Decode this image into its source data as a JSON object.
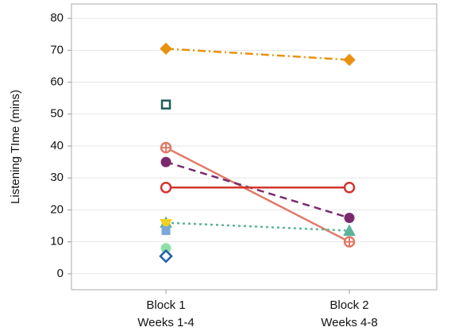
{
  "chart_data": {
    "type": "line",
    "ylabel": "Listening TIme (mins)",
    "categories": [
      [
        "Block 1",
        "Weeks 1-4"
      ],
      [
        "Block 2",
        "Weeks 4-8"
      ]
    ],
    "ylim": [
      -5,
      84.5
    ],
    "yticks": [
      0,
      10,
      20,
      30,
      40,
      50,
      60,
      70,
      80
    ],
    "grid": true,
    "series": [
      {
        "color": "#e8920c",
        "marker": "diamond",
        "dash": "dashdot",
        "values": [
          70.5,
          67
        ]
      },
      {
        "color": "#1f5c5a",
        "marker": "square-open",
        "dash": "solid",
        "values": [
          53,
          null
        ]
      },
      {
        "color": "#e07a68",
        "marker": "circle-plus",
        "dash": "solid",
        "values": [
          39.5,
          10
        ]
      },
      {
        "color": "#7b2a6e",
        "marker": "circle",
        "dash": "dashed",
        "values": [
          35,
          17.5
        ]
      },
      {
        "color": "#d2352f",
        "marker": "circle-open",
        "dash": "solid",
        "values": [
          27,
          27
        ]
      },
      {
        "color": "#5bb39a",
        "marker": "triangle",
        "dash": "dotted",
        "values": [
          16,
          13.5
        ]
      },
      {
        "color": "#f2d01e",
        "marker": "triangle-down",
        "dash": "solid",
        "values": [
          15.5,
          null
        ]
      },
      {
        "color": "#7aa8d8",
        "marker": "square",
        "dash": "solid",
        "values": [
          13.5,
          null
        ]
      },
      {
        "color": "#8fe0a8",
        "marker": "circle",
        "dash": "solid",
        "values": [
          8,
          null
        ]
      },
      {
        "color": "#1f5fa8",
        "marker": "diamond-open",
        "dash": "solid",
        "values": [
          5.5,
          null
        ]
      }
    ]
  }
}
